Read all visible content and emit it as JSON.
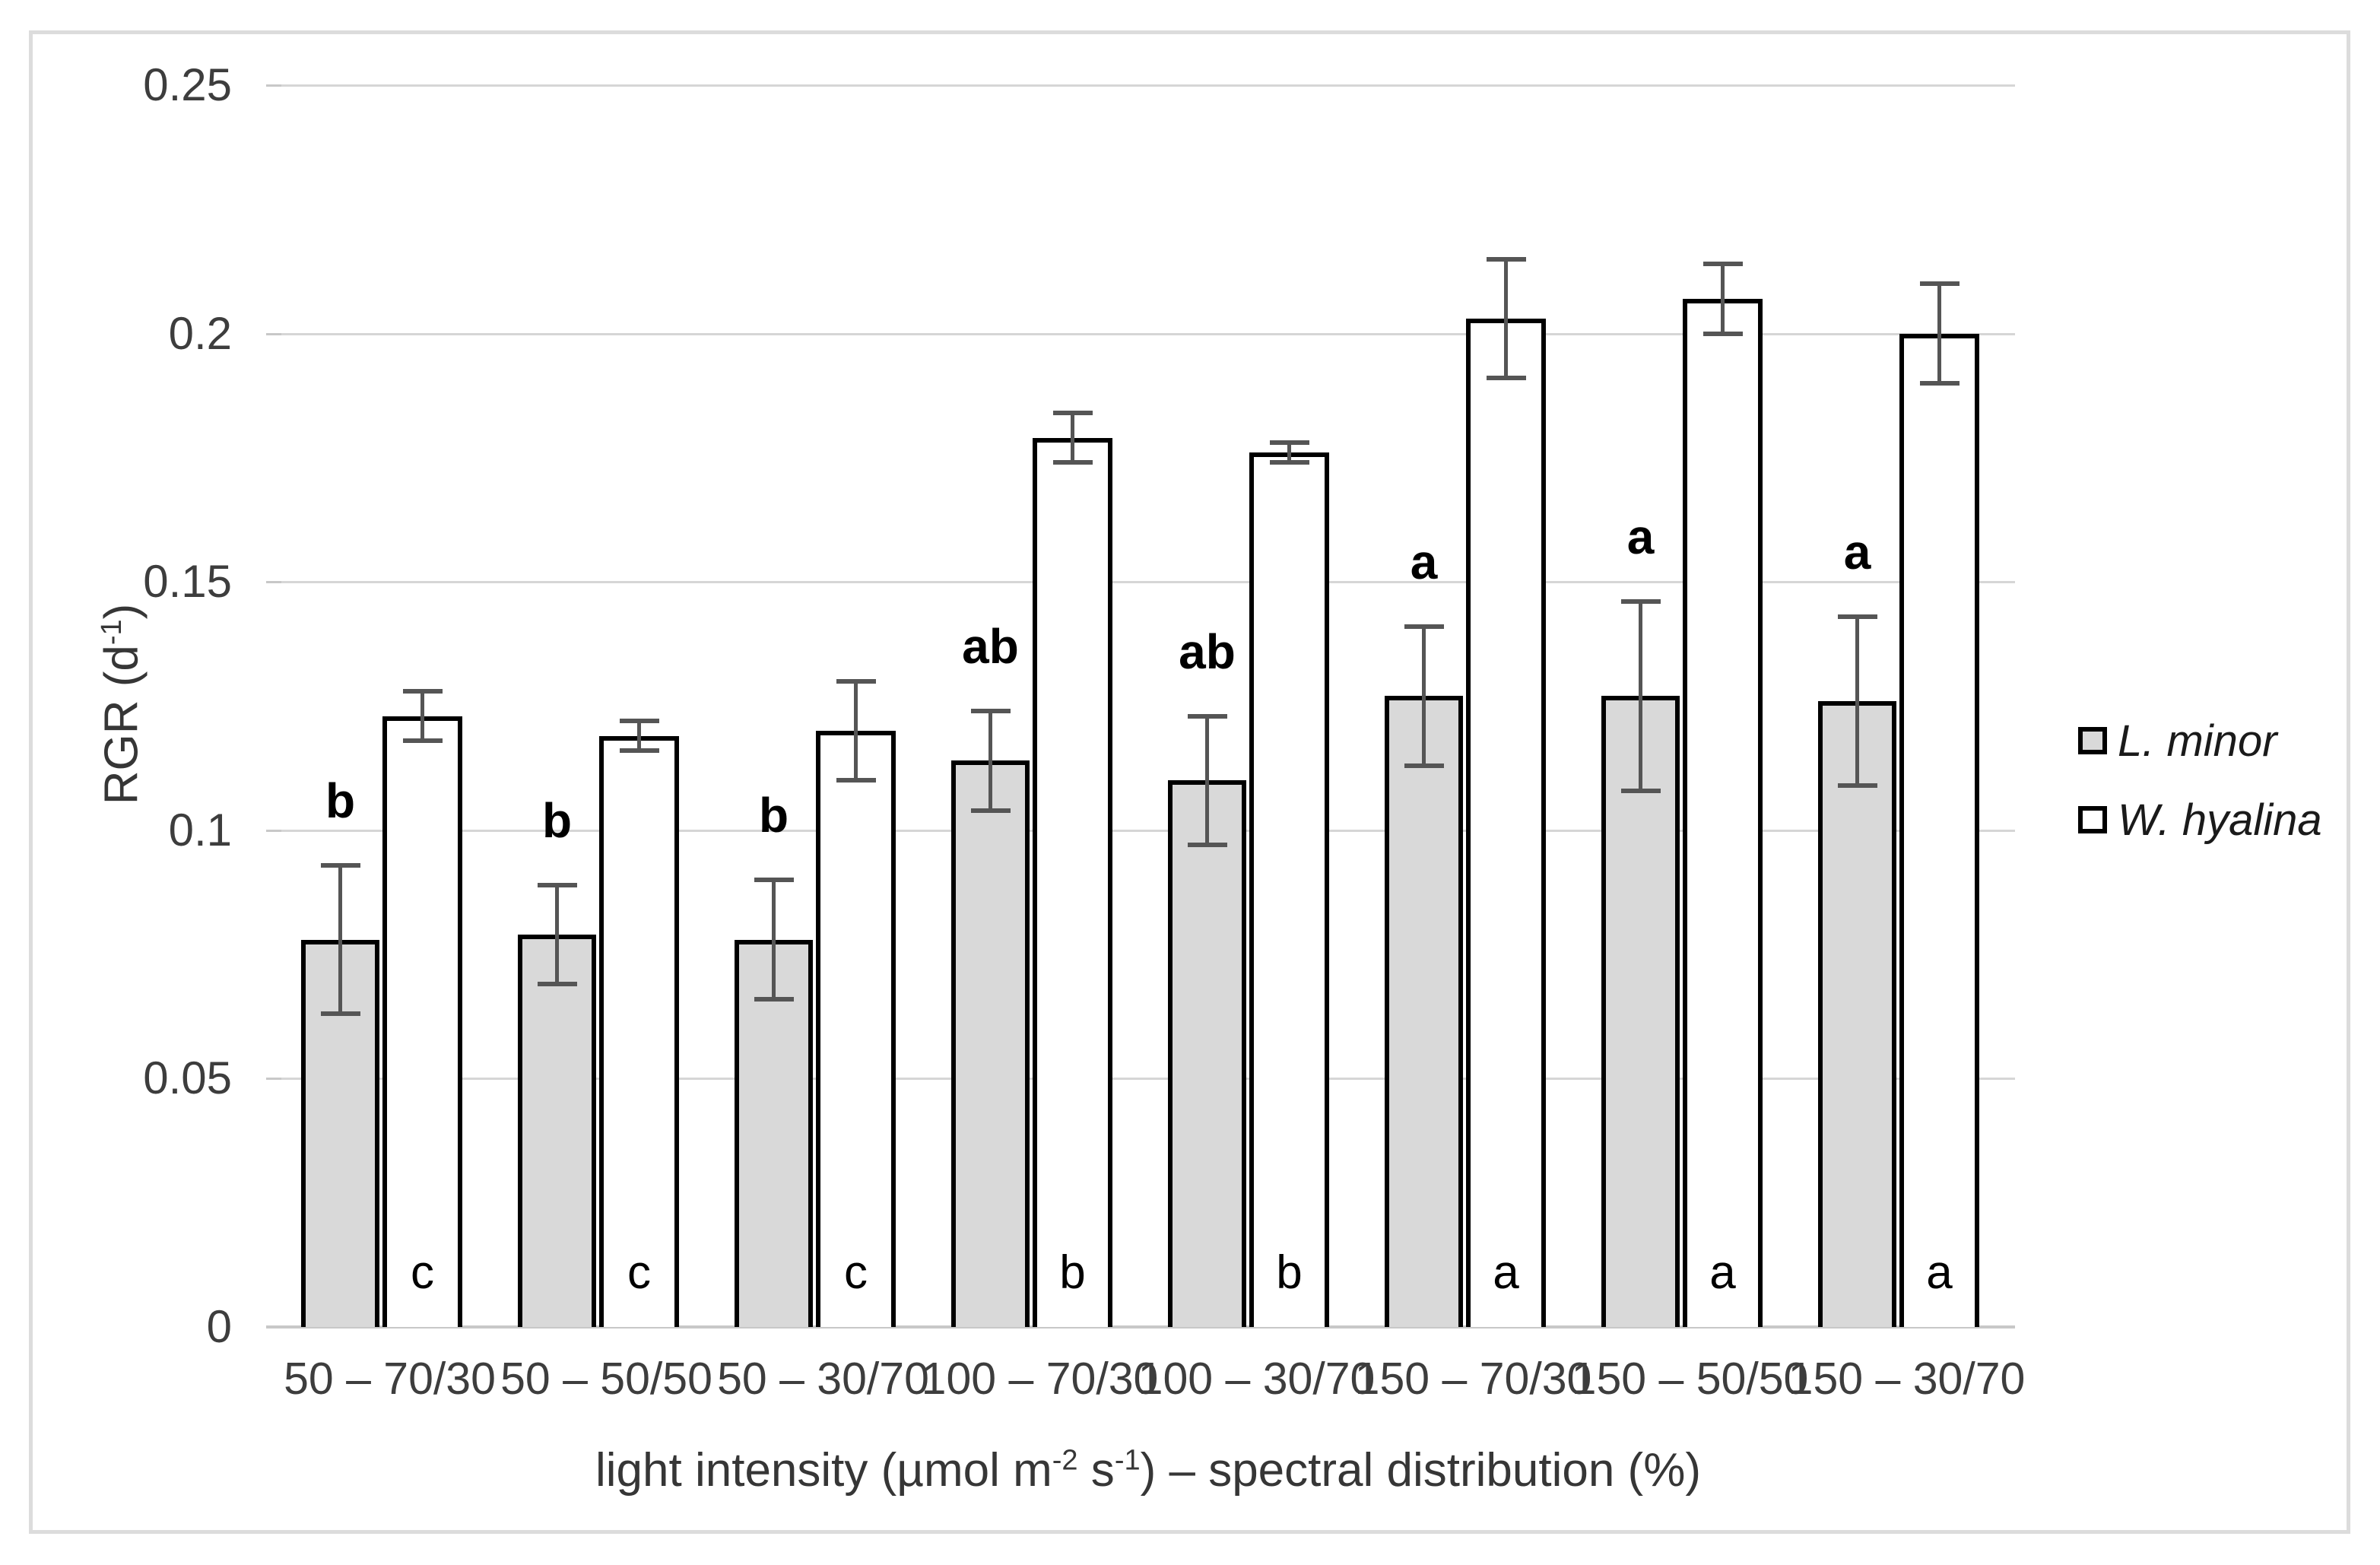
{
  "chart_data": {
    "type": "bar",
    "title": "",
    "ylabel": "RGR (d-1)",
    "ylabel_segments": [
      "RGR (d",
      "-1",
      ")"
    ],
    "xlabel": "light intensity (umol m-2 s-1) - spectral distribution (%)",
    "xlabel_segments": [
      "light intensity (µmol m",
      "-2",
      " s",
      "-1",
      ") – spectral distribution (%)"
    ],
    "categories": [
      "50 – 70/30",
      "50 – 50/50",
      "50 – 30/70",
      "100 – 70/30",
      "100 – 30/70",
      "150 – 70/30",
      "150 – 50/50",
      "150 – 30/70"
    ],
    "series": [
      {
        "name": "L. minor",
        "fill": "#d9d9d9",
        "values": [
          0.078,
          0.079,
          0.078,
          0.114,
          0.11,
          0.127,
          0.127,
          0.126
        ],
        "errors": [
          0.015,
          0.01,
          0.012,
          0.01,
          0.013,
          0.014,
          0.019,
          0.017
        ],
        "letters": [
          "b",
          "b",
          "b",
          "ab",
          "ab",
          "a",
          "a",
          "a"
        ],
        "letter_position": "above"
      },
      {
        "name": "W. hyalina",
        "fill": "#ffffff",
        "values": [
          0.123,
          0.119,
          0.12,
          0.179,
          0.176,
          0.203,
          0.207,
          0.2
        ],
        "errors": [
          0.005,
          0.003,
          0.01,
          0.005,
          0.002,
          0.012,
          0.007,
          0.01
        ],
        "letters": [
          "c",
          "c",
          "c",
          "b",
          "b",
          "a",
          "a",
          "a"
        ],
        "letter_position": "inside-bottom"
      }
    ],
    "ylim": [
      0,
      0.25
    ],
    "yticks": [
      {
        "value": 0,
        "label": "0"
      },
      {
        "value": 0.05,
        "label": "0.05"
      },
      {
        "value": 0.1,
        "label": "0.1"
      },
      {
        "value": 0.15,
        "label": "0.15"
      },
      {
        "value": 0.2,
        "label": "0.2"
      },
      {
        "value": 0.25,
        "label": "0.25"
      }
    ],
    "grid": "horizontal",
    "legend_position": "right",
    "error_bars": true
  },
  "colors": {
    "background": "#ffffff",
    "figure_border": "#dcdcdc",
    "gridline": "#d6d6d6",
    "axis_line": "#c8c8c8",
    "bar_border": "#000000",
    "lminor_fill": "#d9d9d9",
    "whyalina_fill": "#ffffff",
    "error_bar": "#555555",
    "tick_label_text": "#3d3d3d",
    "axis_title_text": "#363636",
    "letter_text": "#000000"
  }
}
